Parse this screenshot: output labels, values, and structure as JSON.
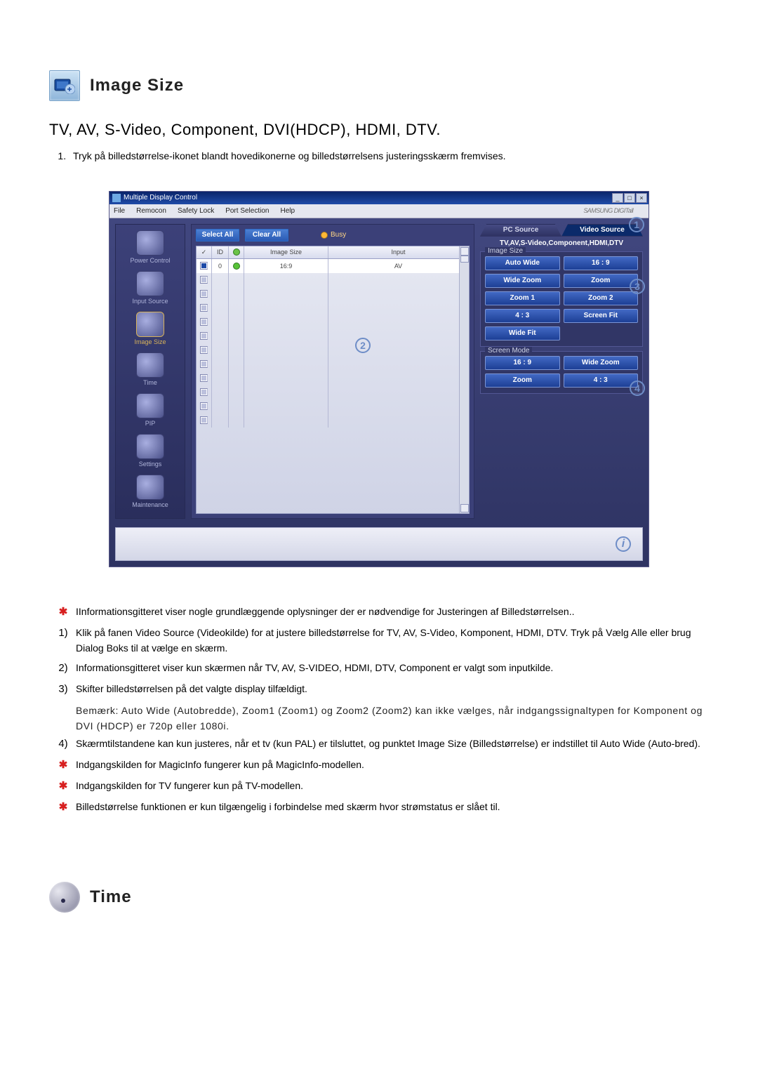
{
  "heading_image_size": "Image Size",
  "heading_time": "Time",
  "subheading": "TV, AV, S-Video, Component, DVI(HDCP), HDMI, DTV.",
  "intro_item": "Tryk på billedstørrelse-ikonet blandt hovedikonerne og billedstørrelsens justeringsskærm fremvises.",
  "screenshot": {
    "title": "Multiple Display Control",
    "menus": [
      "File",
      "Remocon",
      "Safety Lock",
      "Port Selection",
      "Help"
    ],
    "brand": "SAMSUNG DIGITall",
    "sidebar": [
      {
        "label": "Power Control"
      },
      {
        "label": "Input Source"
      },
      {
        "label": "Image Size",
        "active": true
      },
      {
        "label": "Time"
      },
      {
        "label": "PIP"
      },
      {
        "label": "Settings"
      },
      {
        "label": "Maintenance"
      }
    ],
    "buttons": {
      "select_all": "Select All",
      "clear_all": "Clear All",
      "busy": "Busy"
    },
    "grid": {
      "headers": {
        "cb": "✓",
        "id": "ID",
        "st": "●",
        "size": "Image Size",
        "input": "Input"
      },
      "row0": {
        "id": "0",
        "size": "16:9",
        "input": "AV"
      },
      "empty_count": 11
    },
    "tabs": {
      "pc": "PC Source",
      "video": "Video Source"
    },
    "source_label": "TV,AV,S-Video,Component,HDMI,DTV",
    "image_size": {
      "legend": "Image Size",
      "opts": [
        "Auto Wide",
        "16 : 9",
        "Wide Zoom",
        "Zoom",
        "Zoom 1",
        "Zoom 2",
        "4 : 3",
        "Screen Fit",
        "Wide Fit"
      ]
    },
    "screen_mode": {
      "legend": "Screen Mode",
      "opts": [
        "16 : 9",
        "Wide Zoom",
        "Zoom",
        "4 : 3"
      ]
    },
    "badges": {
      "b1": "1",
      "b2": "2",
      "b3": "3",
      "b4": "4"
    },
    "info_bubble": "i"
  },
  "notes": [
    {
      "marker": "star",
      "text": "IInformationsgitteret viser nogle grundlæggende oplysninger der er nødvendige for Justeringen af Billedstørrelsen.."
    },
    {
      "marker": "1",
      "text": "Klik på fanen Video Source (Videokilde) for at justere billedstørrelse for TV, AV, S-Video, Komponent, HDMI, DTV. Tryk på Vælg Alle eller brug Dialog Boks til at vælge en skærm."
    },
    {
      "marker": "2",
      "text": "Informationsgitteret viser kun skærmen når TV, AV, S-VIDEO, HDMI, DTV, Component er valgt som inputkilde."
    },
    {
      "marker": "3",
      "text": "Skifter billedstørrelsen på det valgte display tilfældigt."
    },
    {
      "marker": "note",
      "text": "Bemærk: Auto Wide (Autobredde), Zoom1 (Zoom1) og Zoom2 (Zoom2) kan ikke vælges, når indgangssignaltypen for Komponent og DVI (HDCP) er 720p eller 1080i."
    },
    {
      "marker": "4",
      "text": "Skærmtilstandene kan kun justeres, når et tv (kun PAL) er tilsluttet, og punktet Image Size (Billedstørrelse) er indstillet til Auto Wide (Auto-bred)."
    },
    {
      "marker": "star",
      "text": "Indgangskilden for MagicInfo fungerer kun på MagicInfo-modellen."
    },
    {
      "marker": "star",
      "text": "Indgangskilden for TV fungerer kun på TV-modellen."
    },
    {
      "marker": "star",
      "text": "Billedstørrelse funktionen er kun tilgængelig i forbindelse med skærm hvor strømstatus er slået til."
    }
  ],
  "colors": {
    "client_bg": "#353a6e",
    "sidebar_active": "#d8b35a",
    "accent_blue": "#2a5bb4",
    "badge_ring": "#6e8dc7",
    "star": "#d71f1f"
  }
}
